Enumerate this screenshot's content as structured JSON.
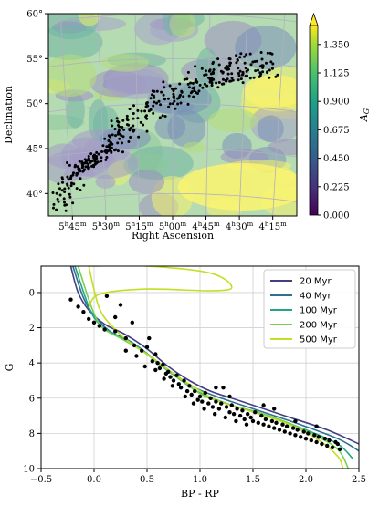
{
  "chart_data": [
    {
      "type": "scatter",
      "map": "extinction heatmap",
      "xlabel": "Right Ascension",
      "ylabel": "Declination",
      "x_ticks": [
        "5h45m",
        "5h30m",
        "5h15m",
        "5h00m",
        "4h45m",
        "4h30m",
        "4h15m"
      ],
      "x_tick_text": [
        {
          "h": "5",
          "m": "45"
        },
        {
          "h": "5",
          "m": "30"
        },
        {
          "h": "5",
          "m": "15"
        },
        {
          "h": "5",
          "m": "00"
        },
        {
          "h": "4",
          "m": "45"
        },
        {
          "h": "4",
          "m": "30"
        },
        {
          "h": "4",
          "m": "15"
        }
      ],
      "y_ticks": [
        "40°",
        "45°",
        "50°",
        "55°",
        "60°"
      ],
      "colorbar": {
        "label": "A",
        "label_sub": "G",
        "ticks": [
          "0.000",
          "0.225",
          "0.450",
          "0.675",
          "0.900",
          "1.125",
          "1.350"
        ],
        "range": [
          0,
          1.5
        ],
        "colormap": "viridis",
        "extend": "max"
      },
      "ra_range_hours": [
        5.93,
        4.07
      ],
      "dec_range": [
        37.5,
        60
      ],
      "track": [
        {
          "ra": 5.85,
          "dec": 39.0
        },
        {
          "ra": 5.75,
          "dec": 41.5
        },
        {
          "ra": 5.65,
          "dec": 43.5
        },
        {
          "ra": 5.55,
          "dec": 44.0
        },
        {
          "ra": 5.4,
          "dec": 46.5
        },
        {
          "ra": 5.25,
          "dec": 48.5
        },
        {
          "ra": 5.05,
          "dec": 50.5
        },
        {
          "ra": 4.85,
          "dec": 52.0
        },
        {
          "ra": 4.65,
          "dec": 53.5
        },
        {
          "ra": 4.45,
          "dec": 54.0
        },
        {
          "ra": 4.25,
          "dec": 54.5
        }
      ],
      "n_stars": 380
    },
    {
      "type": "scatter",
      "xlabel": "BP - RP",
      "ylabel": "G",
      "xlim": [
        -0.5,
        2.5
      ],
      "ylim": [
        10,
        -1.5
      ],
      "x_ticks": [
        "−0.5",
        "0.0",
        "0.5",
        "1.0",
        "1.5",
        "2.0",
        "2.5"
      ],
      "x_tick_values": [
        -0.5,
        0.0,
        0.5,
        1.0,
        1.5,
        2.0,
        2.5
      ],
      "y_ticks": [
        "0",
        "2",
        "4",
        "6",
        "8",
        "10"
      ],
      "y_tick_values": [
        0,
        2,
        4,
        6,
        8,
        10
      ],
      "grid": true,
      "legend": "top-right",
      "series": [
        {
          "name": "20 Myr",
          "color": "#433e85",
          "points": [
            [
              -0.22,
              -1.5
            ],
            [
              -0.15,
              0.0
            ],
            [
              -0.05,
              1.0
            ],
            [
              0.1,
              1.8
            ],
            [
              0.3,
              2.4
            ],
            [
              0.5,
              3.2
            ],
            [
              0.7,
              4.2
            ],
            [
              0.9,
              5.0
            ],
            [
              1.1,
              5.6
            ],
            [
              1.4,
              6.2
            ],
            [
              1.8,
              7.0
            ],
            [
              2.2,
              7.8
            ],
            [
              2.5,
              8.6
            ]
          ]
        },
        {
          "name": "40 Myr",
          "color": "#2c728e",
          "points": [
            [
              -0.2,
              -1.5
            ],
            [
              -0.1,
              0.3
            ],
            [
              0.0,
              1.3
            ],
            [
              0.15,
              2.2
            ],
            [
              0.35,
              2.8
            ],
            [
              0.55,
              3.7
            ],
            [
              0.75,
              4.6
            ],
            [
              0.95,
              5.4
            ],
            [
              1.2,
              6.0
            ],
            [
              1.5,
              6.6
            ],
            [
              1.9,
              7.4
            ],
            [
              2.3,
              8.3
            ],
            [
              2.5,
              9.0
            ]
          ]
        },
        {
          "name": "100 Myr",
          "color": "#21a585",
          "points": [
            [
              -0.18,
              -1.5
            ],
            [
              -0.05,
              0.8
            ],
            [
              0.05,
              1.8
            ],
            [
              0.2,
              2.4
            ],
            [
              0.4,
              3.0
            ],
            [
              0.6,
              4.0
            ],
            [
              0.8,
              4.9
            ],
            [
              1.0,
              5.7
            ],
            [
              1.3,
              6.4
            ],
            [
              1.6,
              6.9
            ],
            [
              2.0,
              7.8
            ],
            [
              2.3,
              8.6
            ],
            [
              2.45,
              9.5
            ]
          ]
        },
        {
          "name": "200 Myr",
          "color": "#75d054",
          "points": [
            [
              -0.15,
              -1.5
            ],
            [
              -0.02,
              0.9
            ],
            [
              0.08,
              2.0
            ],
            [
              0.25,
              2.6
            ],
            [
              0.45,
              3.3
            ],
            [
              0.65,
              4.2
            ],
            [
              0.85,
              5.1
            ],
            [
              1.05,
              5.9
            ],
            [
              1.35,
              6.5
            ],
            [
              1.7,
              7.1
            ],
            [
              2.05,
              8.0
            ],
            [
              2.3,
              8.9
            ],
            [
              2.4,
              10.0
            ]
          ]
        },
        {
          "name": "500 Myr",
          "color": "#c2df23",
          "points": [
            [
              -0.05,
              -1.5
            ],
            [
              0.05,
              0.9
            ],
            [
              0.2,
              2.1
            ],
            [
              0.35,
              2.9
            ],
            [
              0.55,
              3.7
            ],
            [
              0.75,
              4.6
            ],
            [
              0.95,
              5.4
            ],
            [
              1.15,
              6.1
            ],
            [
              1.45,
              6.7
            ],
            [
              1.8,
              7.4
            ],
            [
              2.1,
              8.3
            ],
            [
              2.3,
              9.3
            ],
            [
              2.35,
              10.0
            ]
          ]
        }
      ],
      "hook_500": [
        [
          -0.05,
          -1.5
        ],
        [
          0.5,
          -1.5
        ],
        [
          1.1,
          -1.1
        ],
        [
          1.3,
          -0.3
        ],
        [
          1.1,
          -0.1
        ],
        [
          0.5,
          -0.2
        ],
        [
          0.05,
          0.1
        ],
        [
          -0.05,
          0.9
        ]
      ],
      "stars": [
        [
          -0.22,
          0.4
        ],
        [
          -0.15,
          0.8
        ],
        [
          -0.1,
          1.1
        ],
        [
          -0.05,
          1.5
        ],
        [
          0.0,
          1.7
        ],
        [
          0.05,
          1.9
        ],
        [
          0.1,
          2.1
        ],
        [
          0.12,
          0.2
        ],
        [
          0.2,
          2.2
        ],
        [
          0.25,
          0.7
        ],
        [
          0.3,
          2.6
        ],
        [
          0.38,
          3.0
        ],
        [
          0.45,
          3.3
        ],
        [
          0.5,
          3.1
        ],
        [
          0.52,
          2.6
        ],
        [
          0.55,
          3.9
        ],
        [
          0.6,
          4.0
        ],
        [
          0.62,
          4.3
        ],
        [
          0.65,
          4.1
        ],
        [
          0.68,
          4.6
        ],
        [
          0.7,
          4.5
        ],
        [
          0.72,
          4.8
        ],
        [
          0.75,
          5.0
        ],
        [
          0.78,
          4.7
        ],
        [
          0.8,
          5.2
        ],
        [
          0.82,
          5.4
        ],
        [
          0.85,
          5.0
        ],
        [
          0.88,
          5.6
        ],
        [
          0.9,
          5.3
        ],
        [
          0.92,
          5.8
        ],
        [
          0.95,
          5.6
        ],
        [
          0.98,
          6.1
        ],
        [
          1.0,
          5.9
        ],
        [
          1.02,
          6.2
        ],
        [
          1.05,
          5.7
        ],
        [
          1.08,
          6.3
        ],
        [
          1.1,
          6.0
        ],
        [
          1.12,
          6.5
        ],
        [
          1.15,
          6.2
        ],
        [
          1.18,
          6.6
        ],
        [
          1.2,
          6.3
        ],
        [
          1.22,
          5.4
        ],
        [
          1.25,
          6.5
        ],
        [
          1.28,
          6.8
        ],
        [
          1.3,
          6.4
        ],
        [
          1.32,
          6.9
        ],
        [
          1.35,
          6.6
        ],
        [
          1.38,
          7.0
        ],
        [
          1.4,
          6.7
        ],
        [
          1.42,
          7.2
        ],
        [
          1.45,
          6.9
        ],
        [
          1.48,
          7.1
        ],
        [
          1.5,
          7.3
        ],
        [
          1.52,
          6.8
        ],
        [
          1.55,
          7.4
        ],
        [
          1.58,
          7.0
        ],
        [
          1.6,
          7.5
        ],
        [
          1.62,
          7.2
        ],
        [
          1.65,
          7.6
        ],
        [
          1.68,
          7.3
        ],
        [
          1.7,
          7.7
        ],
        [
          1.72,
          7.4
        ],
        [
          1.75,
          7.8
        ],
        [
          1.78,
          7.5
        ],
        [
          1.8,
          7.9
        ],
        [
          1.82,
          7.6
        ],
        [
          1.85,
          8.0
        ],
        [
          1.88,
          7.7
        ],
        [
          1.9,
          8.1
        ],
        [
          1.92,
          7.8
        ],
        [
          1.95,
          8.2
        ],
        [
          1.98,
          7.9
        ],
        [
          2.0,
          8.3
        ],
        [
          2.02,
          8.0
        ],
        [
          2.05,
          8.4
        ],
        [
          2.08,
          8.1
        ],
        [
          2.1,
          8.5
        ],
        [
          2.12,
          8.2
        ],
        [
          2.15,
          8.6
        ],
        [
          2.18,
          8.3
        ],
        [
          2.2,
          8.7
        ],
        [
          2.22,
          8.4
        ],
        [
          2.25,
          8.8
        ],
        [
          2.28,
          8.5
        ],
        [
          2.3,
          8.6
        ],
        [
          2.32,
          8.9
        ],
        [
          0.58,
          4.4
        ],
        [
          0.66,
          4.9
        ],
        [
          0.74,
          5.3
        ],
        [
          0.86,
          5.9
        ],
        [
          0.94,
          6.3
        ],
        [
          1.04,
          6.6
        ],
        [
          1.14,
          6.9
        ],
        [
          1.24,
          7.1
        ],
        [
          1.34,
          7.3
        ],
        [
          1.44,
          7.5
        ],
        [
          0.3,
          3.3
        ],
        [
          0.4,
          3.6
        ],
        [
          0.36,
          1.7
        ],
        [
          1.6,
          6.4
        ],
        [
          1.7,
          6.6
        ],
        [
          1.9,
          7.3
        ],
        [
          2.1,
          7.6
        ],
        [
          1.28,
          5.9
        ],
        [
          0.48,
          4.2
        ],
        [
          0.58,
          3.5
        ],
        [
          1.15,
          5.4
        ],
        [
          0.2,
          1.4
        ]
      ]
    }
  ]
}
